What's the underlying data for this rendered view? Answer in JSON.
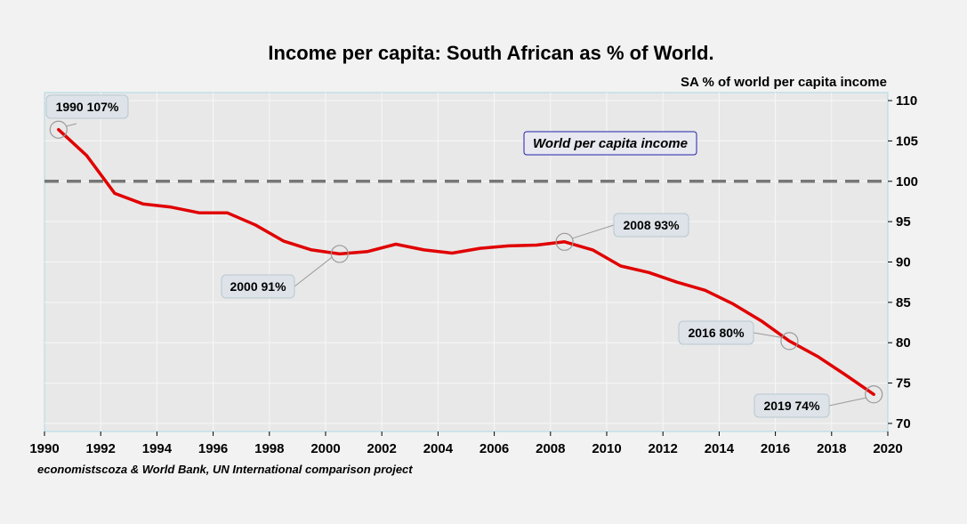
{
  "chart_data": {
    "type": "line",
    "title": "Income per capita: South African as % of World.",
    "ylabel": "SA % of world per capita income",
    "source": "economistscoza & World Bank, UN International comparison project",
    "xlim": [
      1990,
      2020
    ],
    "ylim": [
      69,
      111
    ],
    "x_ticks": [
      1990,
      1992,
      1994,
      1996,
      1998,
      2000,
      2002,
      2004,
      2006,
      2008,
      2010,
      2012,
      2014,
      2016,
      2018,
      2020
    ],
    "y_ticks": [
      70,
      75,
      80,
      85,
      90,
      95,
      100,
      105,
      110
    ],
    "y_axis_side": "right",
    "grid": true,
    "series": [
      {
        "color": "#e00000",
        "x": [
          1990.5,
          1991.5,
          1992.5,
          1993.5,
          1994.5,
          1995.5,
          1996.5,
          1997.5,
          1998.5,
          1999.5,
          2000.5,
          2001.5,
          2002.5,
          2003.5,
          2004.5,
          2005.5,
          2006.5,
          2007.5,
          2008.5,
          2009.5,
          2010.5,
          2011.5,
          2012.5,
          2013.5,
          2014.5,
          2015.5,
          2016.5,
          2017.5,
          2018.5,
          2019.5
        ],
        "values": [
          106.4,
          103.2,
          98.5,
          97.2,
          96.8,
          96.1,
          96.1,
          94.6,
          92.6,
          91.5,
          91.0,
          91.3,
          92.2,
          91.5,
          91.1,
          91.7,
          92.0,
          92.1,
          92.5,
          91.5,
          89.5,
          88.7,
          87.5,
          86.5,
          84.8,
          82.7,
          80.2,
          78.3,
          76.0,
          73.6
        ]
      }
    ],
    "reference_line": {
      "value": 100,
      "color": "#777777",
      "style": "dashed",
      "label": "World per capita income"
    },
    "annotations": [
      {
        "text": "1990 107%",
        "x": 1990.5,
        "y": 106.4
      },
      {
        "text": "2000 91%",
        "x": 2000.5,
        "y": 91.0
      },
      {
        "text": "2008 93%",
        "x": 2008.5,
        "y": 92.5
      },
      {
        "text": "2016 80%",
        "x": 2016.5,
        "y": 80.2
      },
      {
        "text": "2019 74%",
        "x": 2019.5,
        "y": 73.6
      }
    ]
  }
}
